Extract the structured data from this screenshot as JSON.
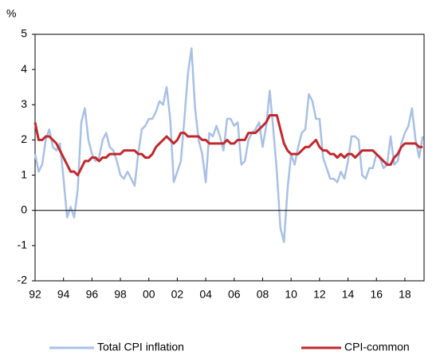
{
  "chart_data": {
    "type": "line",
    "y_label": "%",
    "x": [
      1992,
      1992.25,
      1992.5,
      1992.75,
      1993,
      1993.25,
      1993.5,
      1993.75,
      1994,
      1994.25,
      1994.5,
      1994.75,
      1995,
      1995.25,
      1995.5,
      1995.75,
      1996,
      1996.25,
      1996.5,
      1996.75,
      1997,
      1997.25,
      1997.5,
      1997.75,
      1998,
      1998.25,
      1998.5,
      1998.75,
      1999,
      1999.25,
      1999.5,
      1999.75,
      2000,
      2000.25,
      2000.5,
      2000.75,
      2001,
      2001.25,
      2001.5,
      2001.75,
      2002,
      2002.25,
      2002.5,
      2002.75,
      2003,
      2003.25,
      2003.5,
      2003.75,
      2004,
      2004.25,
      2004.5,
      2004.75,
      2005,
      2005.25,
      2005.5,
      2005.75,
      2006,
      2006.25,
      2006.5,
      2006.75,
      2007,
      2007.25,
      2007.5,
      2007.75,
      2008,
      2008.25,
      2008.5,
      2008.75,
      2009,
      2009.25,
      2009.5,
      2009.75,
      2010,
      2010.25,
      2010.5,
      2010.75,
      2011,
      2011.25,
      2011.5,
      2011.75,
      2012,
      2012.25,
      2012.5,
      2012.75,
      2013,
      2013.25,
      2013.5,
      2013.75,
      2014,
      2014.25,
      2014.5,
      2014.75,
      2015,
      2015.25,
      2015.5,
      2015.75,
      2016,
      2016.25,
      2016.5,
      2016.75,
      2017,
      2017.25,
      2017.5,
      2017.75,
      2018,
      2018.25,
      2018.5,
      2018.75,
      2019,
      2019.25
    ],
    "series": [
      {
        "name": "Total CPI inflation",
        "color": "#a9c0e4",
        "values": [
          1.6,
          1.1,
          1.3,
          2.0,
          2.3,
          1.8,
          1.7,
          1.9,
          0.9,
          -0.2,
          0.1,
          -0.2,
          0.6,
          2.5,
          2.9,
          2.0,
          1.6,
          1.4,
          1.5,
          2.0,
          2.2,
          1.8,
          1.7,
          1.4,
          1.0,
          0.9,
          1.1,
          0.9,
          0.7,
          1.6,
          2.3,
          2.4,
          2.6,
          2.6,
          2.8,
          3.1,
          3.0,
          3.5,
          2.6,
          0.8,
          1.1,
          1.4,
          2.6,
          3.9,
          4.6,
          2.9,
          2.0,
          1.6,
          0.8,
          2.2,
          2.1,
          2.4,
          2.1,
          1.7,
          2.6,
          2.6,
          2.4,
          2.5,
          1.3,
          1.4,
          2.0,
          2.2,
          2.3,
          2.5,
          1.8,
          2.4,
          3.4,
          2.3,
          1.1,
          -0.5,
          -0.9,
          0.6,
          1.6,
          1.3,
          1.8,
          2.2,
          2.3,
          3.3,
          3.1,
          2.6,
          2.6,
          1.5,
          1.2,
          0.9,
          0.9,
          0.8,
          1.1,
          0.9,
          1.4,
          2.1,
          2.1,
          2.0,
          1.0,
          0.9,
          1.2,
          1.2,
          1.6,
          1.5,
          1.2,
          1.3,
          2.1,
          1.3,
          1.4,
          1.9,
          2.2,
          2.4,
          2.9,
          2.0,
          1.5,
          2.1
        ]
      },
      {
        "name": "CPI-common",
        "color": "#c0282d",
        "values": [
          2.5,
          2.0,
          2.0,
          2.1,
          2.1,
          2.0,
          1.9,
          1.7,
          1.5,
          1.3,
          1.1,
          1.1,
          1.0,
          1.2,
          1.4,
          1.4,
          1.5,
          1.5,
          1.4,
          1.5,
          1.5,
          1.6,
          1.6,
          1.6,
          1.6,
          1.7,
          1.7,
          1.7,
          1.7,
          1.6,
          1.6,
          1.5,
          1.5,
          1.6,
          1.8,
          1.9,
          2.0,
          2.1,
          2.0,
          1.9,
          2.0,
          2.2,
          2.2,
          2.1,
          2.1,
          2.1,
          2.1,
          2.0,
          2.0,
          1.9,
          1.9,
          1.9,
          1.9,
          1.9,
          2.0,
          1.9,
          1.9,
          2.0,
          2.0,
          2.0,
          2.2,
          2.2,
          2.2,
          2.3,
          2.4,
          2.5,
          2.7,
          2.7,
          2.7,
          2.3,
          1.9,
          1.7,
          1.6,
          1.6,
          1.6,
          1.7,
          1.8,
          1.8,
          1.9,
          2.0,
          1.8,
          1.7,
          1.7,
          1.6,
          1.6,
          1.5,
          1.6,
          1.5,
          1.6,
          1.6,
          1.5,
          1.6,
          1.7,
          1.7,
          1.7,
          1.7,
          1.6,
          1.5,
          1.4,
          1.3,
          1.3,
          1.5,
          1.6,
          1.8,
          1.9,
          1.9,
          1.9,
          1.9,
          1.8,
          1.8
        ]
      }
    ],
    "xlim": [
      1992,
      2019.35
    ],
    "xticks": [
      {
        "value": 1992,
        "label": "92"
      },
      {
        "value": 1994,
        "label": "94"
      },
      {
        "value": 1996,
        "label": "96"
      },
      {
        "value": 1998,
        "label": "98"
      },
      {
        "value": 2000,
        "label": "00"
      },
      {
        "value": 2002,
        "label": "02"
      },
      {
        "value": 2004,
        "label": "04"
      },
      {
        "value": 2006,
        "label": "06"
      },
      {
        "value": 2008,
        "label": "08"
      },
      {
        "value": 2010,
        "label": "10"
      },
      {
        "value": 2012,
        "label": "12"
      },
      {
        "value": 2014,
        "label": "14"
      },
      {
        "value": 2016,
        "label": "16"
      },
      {
        "value": 2018,
        "label": "18"
      }
    ],
    "ylim": [
      -2,
      5
    ],
    "yticks": [
      -2,
      -1,
      0,
      1,
      2,
      3,
      4,
      5
    ],
    "zero_line": true,
    "legend": "bottom"
  }
}
